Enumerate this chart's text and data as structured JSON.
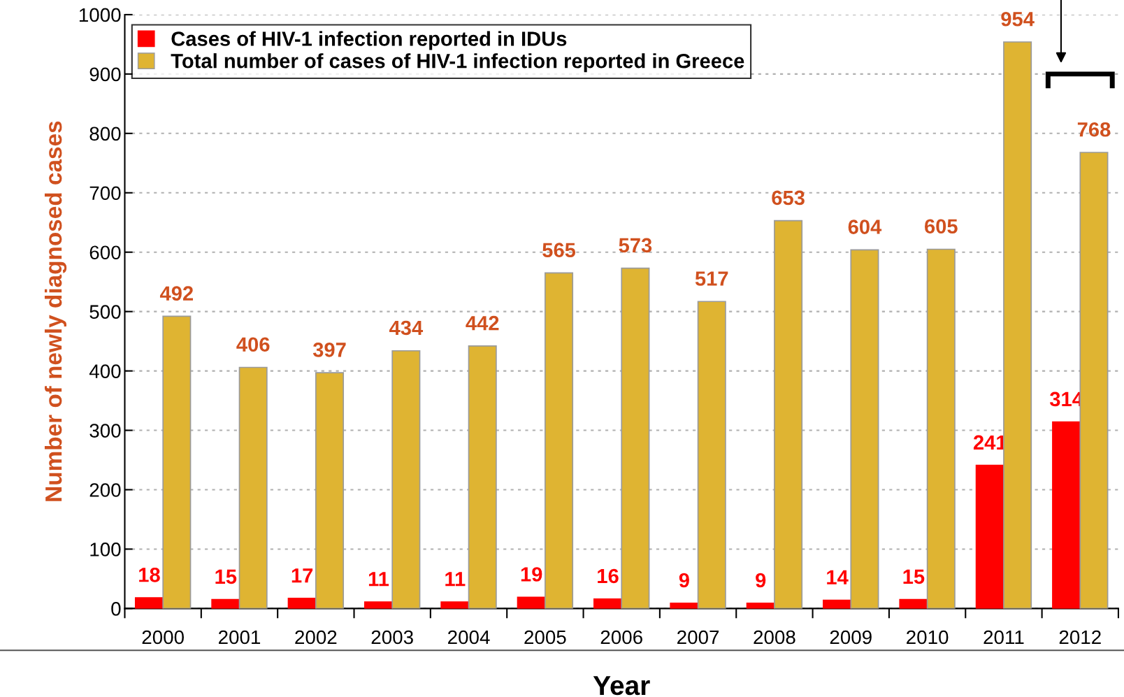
{
  "chart_data": {
    "type": "bar",
    "xlabel": "Year",
    "ylabel": "Number of newly diagnosed cases",
    "categories": [
      "2000",
      "2001",
      "2002",
      "2003",
      "2004",
      "2005",
      "2006",
      "2007",
      "2008",
      "2009",
      "2010",
      "2011",
      "2012"
    ],
    "series": [
      {
        "name": "Cases of HIV-1 infection reported in IDUs",
        "color": "#ff0000",
        "values": [
          18,
          15,
          17,
          11,
          11,
          19,
          16,
          9,
          9,
          14,
          15,
          241,
          314
        ]
      },
      {
        "name": "Total number of cases of HIV-1 infection reported in Greece",
        "color": "#dfb432",
        "values": [
          492,
          406,
          397,
          434,
          442,
          565,
          573,
          517,
          653,
          604,
          605,
          954,
          768
        ]
      }
    ],
    "ylim": [
      0,
      1000
    ],
    "yticks": [
      0,
      100,
      200,
      300,
      400,
      500,
      600,
      700,
      800,
      900,
      1000
    ],
    "grid": "y",
    "legend": "top left",
    "data_labels": true
  }
}
